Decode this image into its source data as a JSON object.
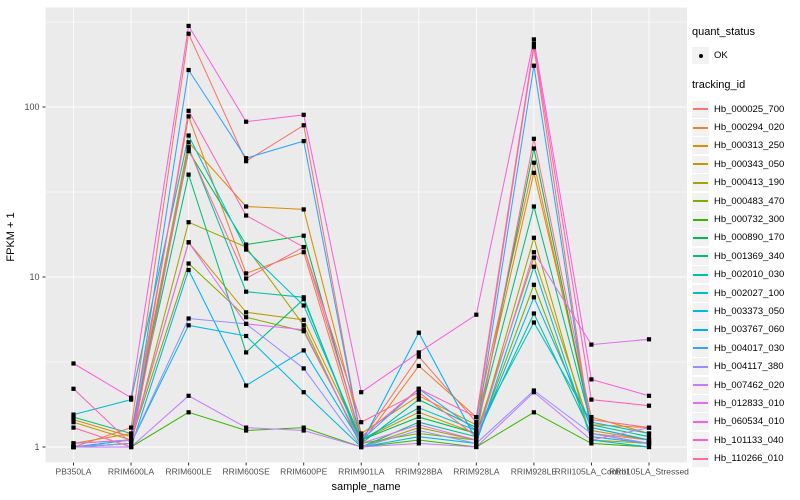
{
  "figure": {
    "background": "#FFFFFF",
    "panel_background": "#EBEBEB",
    "gridline_color": "#FFFFFF",
    "tick_text_color": "#4D4D4D",
    "point_color": "#000000"
  },
  "legend": {
    "quant_status_title": "quant_status",
    "quant_status_items": [
      {
        "label": "OK",
        "marker": "black-point"
      }
    ],
    "tracking_id_title": "tracking_id"
  },
  "chart_data": {
    "type": "line",
    "title": "",
    "xlabel": "sample_name",
    "ylabel": "FPKM + 1",
    "y_scale": "log10",
    "y_ticks": [
      1,
      10,
      100
    ],
    "y_minor_ticks": [
      3.1623,
      31.623,
      316.23
    ],
    "ylim": [
      0.93,
      430
    ],
    "grid": "on",
    "legend_position": "right",
    "marker": "small-black-point",
    "x_categories": [
      "PB350LA",
      "RRIM600LA",
      "RRIM600LE",
      "RRIM600SE",
      "RRIM600PE",
      "RRIM901LA",
      "RRIM928BA",
      "RRIM928LA",
      "RRIM928LE",
      "RRII105LA_Control",
      "RRII105LA_Stressed"
    ],
    "series": [
      {
        "name": "Hb_000025_700",
        "color": "#F8766D",
        "values": [
          1.0,
          1.3,
          270,
          48,
          78,
          1.1,
          3.4,
          1.4,
          225,
          1.2,
          1.1
        ]
      },
      {
        "name": "Hb_000294_020",
        "color": "#EA8331",
        "values": [
          1.05,
          1.2,
          88,
          10.5,
          14,
          1.05,
          3.0,
          1.5,
          47,
          1.35,
          1.3
        ]
      },
      {
        "name": "Hb_000313_250",
        "color": "#D89000",
        "values": [
          1.45,
          1.15,
          62,
          26,
          25,
          1.2,
          2.0,
          1.35,
          41,
          1.5,
          1.2
        ]
      },
      {
        "name": "Hb_000343_050",
        "color": "#C09B00",
        "values": [
          1.4,
          1.1,
          16,
          6.2,
          5.6,
          1.1,
          1.6,
          1.2,
          13,
          1.25,
          1.1
        ]
      },
      {
        "name": "Hb_000413_190",
        "color": "#A3A500",
        "values": [
          1.0,
          1.05,
          21,
          15,
          5.2,
          1.0,
          1.3,
          1.1,
          17,
          1.1,
          1.05
        ]
      },
      {
        "name": "Hb_000483_470",
        "color": "#7CAE00",
        "values": [
          1.0,
          1.1,
          12,
          5.8,
          4.8,
          1.05,
          1.2,
          1.1,
          9.0,
          1.15,
          1.05
        ]
      },
      {
        "name": "Hb_000732_300",
        "color": "#39B600",
        "values": [
          1.0,
          1.0,
          1.6,
          1.25,
          1.3,
          1.0,
          1.1,
          1.0,
          1.6,
          1.05,
          1.0
        ]
      },
      {
        "name": "Hb_000890_170",
        "color": "#00BB4E",
        "values": [
          1.05,
          1.1,
          55,
          15.5,
          17.5,
          1.1,
          1.5,
          1.2,
          57,
          1.3,
          1.1
        ]
      },
      {
        "name": "Hb_001369_340",
        "color": "#00BF7D",
        "values": [
          1.5,
          1.2,
          40,
          3.6,
          7.4,
          1.05,
          1.9,
          1.3,
          26,
          1.35,
          1.15
        ]
      },
      {
        "name": "Hb_002010_030",
        "color": "#00C1A3",
        "values": [
          1.0,
          1.05,
          58,
          8.2,
          7.6,
          1.0,
          1.4,
          1.15,
          6.1,
          1.2,
          1.05
        ]
      },
      {
        "name": "Hb_002027_100",
        "color": "#00BFC4",
        "values": [
          1.55,
          1.9,
          68,
          14.5,
          6.8,
          1.1,
          1.7,
          1.25,
          5.4,
          1.4,
          1.2
        ]
      },
      {
        "name": "Hb_003373_050",
        "color": "#00BAE0",
        "values": [
          1.0,
          1.05,
          5.2,
          4.5,
          2.1,
          1.0,
          1.15,
          1.05,
          11.5,
          1.1,
          1.0
        ]
      },
      {
        "name": "Hb_003767_060",
        "color": "#00B0F6",
        "values": [
          1.0,
          1.0,
          11,
          2.3,
          3.7,
          1.05,
          4.7,
          1.1,
          7.6,
          1.3,
          1.1
        ]
      },
      {
        "name": "Hb_004017_030",
        "color": "#35A2FF",
        "values": [
          1.0,
          1.1,
          165,
          50,
          63,
          1.1,
          2.2,
          1.25,
          175,
          1.15,
          1.05
        ]
      },
      {
        "name": "Hb_004117_380",
        "color": "#9590FF",
        "values": [
          1.0,
          1.05,
          5.7,
          5.3,
          2.9,
          1.0,
          1.25,
          1.05,
          2.15,
          1.2,
          1.05
        ]
      },
      {
        "name": "Hb_007462_020",
        "color": "#C77CFF",
        "values": [
          1.0,
          1.0,
          2.0,
          1.3,
          1.25,
          1.0,
          1.05,
          1.0,
          2.1,
          1.1,
          1.3
        ]
      },
      {
        "name": "Hb_012833_010",
        "color": "#E76BF3",
        "values": [
          1.05,
          1.1,
          16,
          5.3,
          4.9,
          1.05,
          1.35,
          1.1,
          14,
          4.0,
          4.3
        ]
      },
      {
        "name": "Hb_060534_010",
        "color": "#FA62DB",
        "values": [
          3.1,
          1.95,
          300,
          82,
          90,
          2.1,
          3.6,
          6.0,
          250,
          2.5,
          2.0
        ]
      },
      {
        "name": "Hb_101133_040",
        "color": "#FF62BC",
        "values": [
          2.2,
          1.05,
          95,
          23,
          15,
          1.15,
          2.2,
          1.5,
          235,
          1.9,
          1.75
        ]
      },
      {
        "name": "Hb_110266_010",
        "color": "#FF6A98",
        "values": [
          1.3,
          1.0,
          57,
          9.8,
          15,
          1.4,
          2.1,
          1.15,
          65,
          1.45,
          1.3
        ]
      }
    ]
  }
}
